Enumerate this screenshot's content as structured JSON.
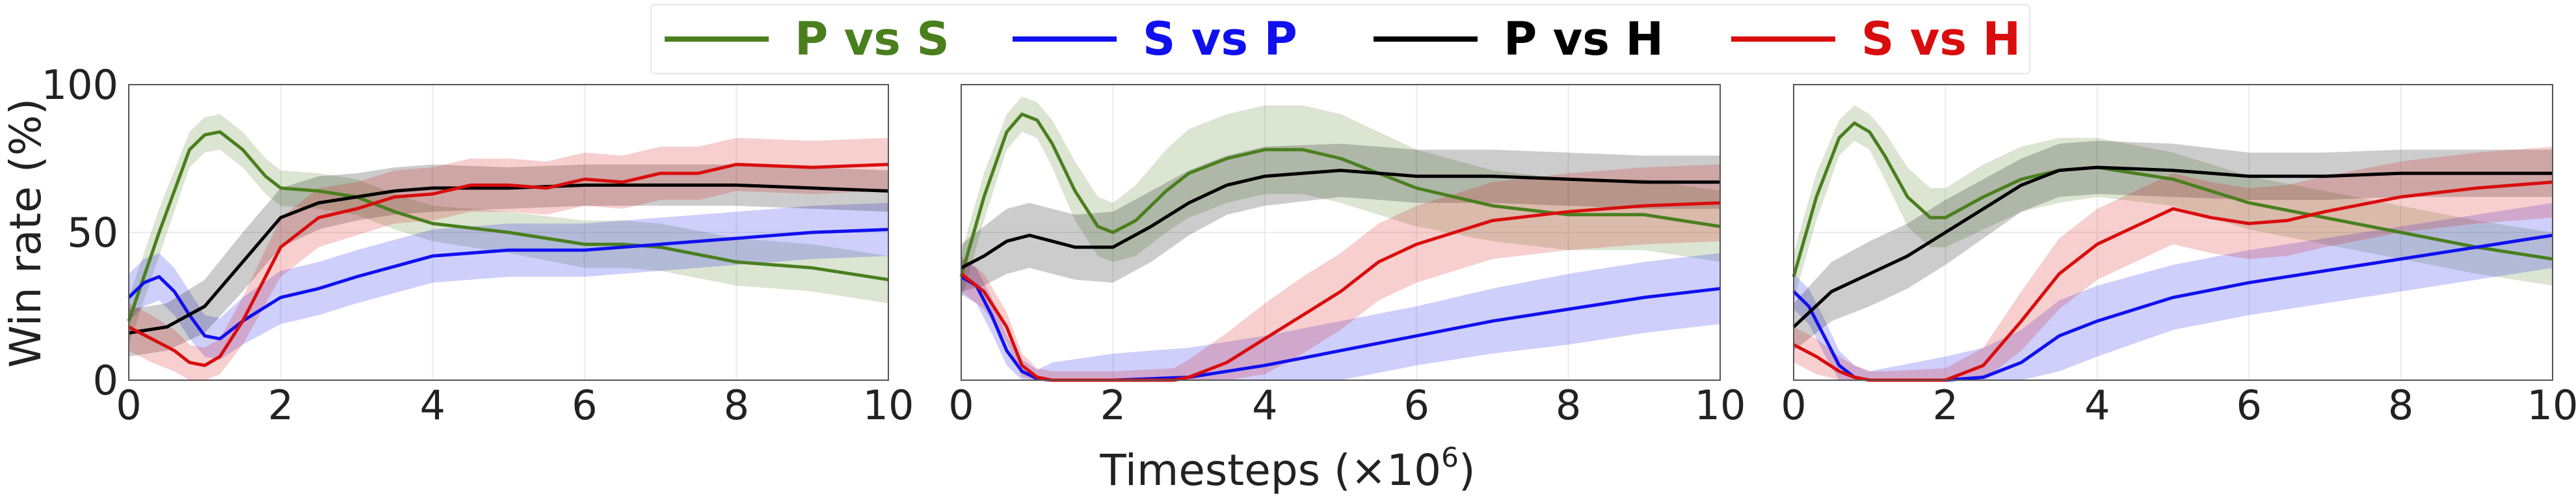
{
  "legend": [
    {
      "label": "P vs S",
      "color": "#4a7f1e"
    },
    {
      "label": "S vs P",
      "color": "#1010ee"
    },
    {
      "label": "P vs H",
      "color": "#000000"
    },
    {
      "label": "S vs H",
      "color": "#d90d0d"
    }
  ],
  "ylabel": "Win rate (%)",
  "xlabel_main": "Timesteps (×10",
  "xlabel_exp": "6",
  "xlabel_close": ")",
  "chart_data": [
    {
      "type": "line",
      "xlim": [
        0,
        10
      ],
      "ylim": [
        0,
        100
      ],
      "xticks": [
        "0",
        "2",
        "4",
        "6",
        "8",
        "10"
      ],
      "yticks": [
        "0",
        "50",
        "100"
      ],
      "grid": true,
      "series": [
        {
          "name": "P vs S",
          "color": "#4a7f1e",
          "x": [
            0,
            0.4,
            0.8,
            1.0,
            1.2,
            1.5,
            1.8,
            2.0,
            2.5,
            3.0,
            3.5,
            4.0,
            5.0,
            6.0,
            6.5,
            7.0,
            8.0,
            9.0,
            10.0
          ],
          "y": [
            20,
            50,
            78,
            83,
            84,
            78,
            69,
            65,
            64,
            62,
            57,
            53,
            50,
            46,
            46,
            45,
            40,
            38,
            34
          ],
          "band": [
            8,
            8,
            6,
            6,
            6,
            6,
            6,
            6,
            6,
            6,
            6,
            6,
            7,
            8,
            8,
            8,
            8,
            8,
            8
          ]
        },
        {
          "name": "S vs P",
          "color": "#1010ee",
          "x": [
            0,
            0.2,
            0.4,
            0.6,
            0.8,
            1.0,
            1.2,
            1.5,
            2.0,
            2.5,
            3.0,
            4.0,
            5.0,
            6.0,
            7.0,
            8.0,
            9.0,
            10.0
          ],
          "y": [
            28,
            33,
            35,
            30,
            22,
            15,
            14,
            20,
            28,
            31,
            35,
            42,
            44,
            44,
            46,
            48,
            50,
            51
          ],
          "band": [
            8,
            8,
            8,
            8,
            8,
            7,
            7,
            8,
            9,
            9,
            9,
            9,
            9,
            9,
            9,
            9,
            9,
            9
          ]
        },
        {
          "name": "P vs H",
          "color": "#000000",
          "x": [
            0,
            0.5,
            1.0,
            1.5,
            2.0,
            2.5,
            3.0,
            3.5,
            4.0,
            5.0,
            6.0,
            7.0,
            8.0,
            9.0,
            10.0
          ],
          "y": [
            16,
            18,
            25,
            40,
            55,
            60,
            62,
            64,
            65,
            65,
            66,
            66,
            66,
            65,
            64
          ],
          "band": [
            8,
            8,
            9,
            10,
            10,
            9,
            8,
            8,
            8,
            7,
            7,
            7,
            7,
            7,
            7
          ]
        },
        {
          "name": "S vs H",
          "color": "#d90d0d",
          "x": [
            0,
            0.3,
            0.6,
            0.8,
            1.0,
            1.2,
            1.5,
            2.0,
            2.5,
            3.0,
            3.5,
            4.0,
            4.5,
            5.0,
            5.5,
            6.0,
            6.5,
            7.0,
            7.5,
            8.0,
            9.0,
            10.0
          ],
          "y": [
            18,
            14,
            10,
            6,
            5,
            8,
            20,
            45,
            55,
            58,
            62,
            63,
            66,
            66,
            65,
            68,
            67,
            70,
            70,
            73,
            72,
            73
          ],
          "band": [
            8,
            8,
            7,
            6,
            6,
            6,
            8,
            10,
            10,
            9,
            9,
            9,
            9,
            9,
            9,
            9,
            9,
            9,
            9,
            9,
            9,
            9
          ]
        }
      ]
    },
    {
      "type": "line",
      "xlim": [
        0,
        10
      ],
      "ylim": [
        0,
        100
      ],
      "xticks": [
        "0",
        "2",
        "4",
        "6",
        "8",
        "10"
      ],
      "yticks": [],
      "grid": true,
      "series": [
        {
          "name": "P vs S",
          "color": "#4a7f1e",
          "x": [
            0,
            0.3,
            0.6,
            0.8,
            1.0,
            1.2,
            1.5,
            1.8,
            2.0,
            2.3,
            2.7,
            3.0,
            3.5,
            4.0,
            4.5,
            5.0,
            5.5,
            6.0,
            7.0,
            8.0,
            9.0,
            10.0
          ],
          "y": [
            35,
            62,
            84,
            90,
            88,
            80,
            64,
            52,
            50,
            54,
            64,
            70,
            75,
            78,
            78,
            75,
            70,
            65,
            59,
            56,
            56,
            52
          ],
          "band": [
            8,
            8,
            6,
            6,
            6,
            8,
            10,
            10,
            10,
            12,
            14,
            15,
            15,
            15,
            15,
            15,
            14,
            13,
            12,
            12,
            12,
            12
          ]
        },
        {
          "name": "S vs P",
          "color": "#1010ee",
          "x": [
            0,
            0.2,
            0.4,
            0.6,
            0.8,
            1.0,
            1.2,
            2.0,
            3.0,
            4.0,
            5.0,
            6.0,
            7.0,
            8.0,
            9.0,
            10.0
          ],
          "y": [
            35,
            32,
            22,
            10,
            3,
            0.5,
            0,
            0,
            1,
            5,
            10,
            15,
            20,
            24,
            28,
            31
          ],
          "band": [
            6,
            6,
            6,
            5,
            4,
            3,
            6,
            9,
            10,
            10,
            10,
            10,
            11,
            12,
            12,
            12
          ]
        },
        {
          "name": "P vs H",
          "color": "#000000",
          "x": [
            0,
            0.3,
            0.6,
            0.9,
            1.2,
            1.5,
            2.0,
            2.5,
            3.0,
            3.5,
            4.0,
            5.0,
            6.0,
            7.0,
            8.0,
            9.0,
            10.0
          ],
          "y": [
            38,
            42,
            47,
            49,
            47,
            45,
            45,
            52,
            60,
            66,
            69,
            71,
            69,
            69,
            68,
            67,
            67
          ],
          "band": [
            8,
            10,
            11,
            11,
            11,
            11,
            12,
            12,
            11,
            10,
            10,
            9,
            9,
            9,
            9,
            9,
            9
          ]
        },
        {
          "name": "S vs H",
          "color": "#d90d0d",
          "x": [
            0,
            0.3,
            0.6,
            0.8,
            1.0,
            1.2,
            2.0,
            2.8,
            3.0,
            3.5,
            4.0,
            4.5,
            5.0,
            5.5,
            6.0,
            6.5,
            7.0,
            8.0,
            9.0,
            10.0
          ],
          "y": [
            36,
            30,
            18,
            5,
            1,
            0,
            0,
            0,
            1,
            6,
            14,
            22,
            30,
            40,
            46,
            50,
            54,
            57,
            59,
            60
          ],
          "band": [
            6,
            6,
            5,
            4,
            3,
            3,
            3,
            4,
            6,
            10,
            12,
            13,
            13,
            13,
            13,
            13,
            13,
            13,
            13,
            13
          ]
        }
      ]
    },
    {
      "type": "line",
      "xlim": [
        0,
        10
      ],
      "ylim": [
        0,
        100
      ],
      "xticks": [
        "0",
        "2",
        "4",
        "6",
        "8",
        "10"
      ],
      "yticks": [],
      "grid": true,
      "series": [
        {
          "name": "P vs S",
          "color": "#4a7f1e",
          "x": [
            0,
            0.3,
            0.6,
            0.8,
            1.0,
            1.2,
            1.5,
            1.8,
            2.0,
            2.5,
            3.0,
            3.5,
            4.0,
            5.0,
            6.0,
            7.0,
            8.0,
            9.0,
            10.0
          ],
          "y": [
            35,
            62,
            82,
            87,
            84,
            76,
            62,
            55,
            55,
            62,
            68,
            71,
            72,
            68,
            60,
            55,
            50,
            45,
            41
          ],
          "band": [
            8,
            8,
            6,
            6,
            6,
            8,
            10,
            10,
            10,
            11,
            11,
            11,
            10,
            9,
            9,
            9,
            9,
            9,
            9
          ]
        },
        {
          "name": "S vs P",
          "color": "#1010ee",
          "x": [
            0,
            0.2,
            0.4,
            0.6,
            0.8,
            1.0,
            1.2,
            2.0,
            2.5,
            3.0,
            3.5,
            4.0,
            5.0,
            6.0,
            7.0,
            8.0,
            9.0,
            10.0
          ],
          "y": [
            30,
            25,
            15,
            5,
            1,
            0,
            0,
            0,
            1,
            6,
            15,
            20,
            28,
            33,
            37,
            41,
            45,
            49
          ],
          "band": [
            6,
            6,
            6,
            5,
            4,
            3,
            4,
            8,
            10,
            11,
            12,
            12,
            11,
            11,
            11,
            11,
            11,
            11
          ]
        },
        {
          "name": "P vs H",
          "color": "#000000",
          "x": [
            0,
            0.5,
            1.0,
            1.5,
            2.0,
            2.5,
            3.0,
            3.5,
            4.0,
            5.0,
            6.0,
            7.0,
            8.0,
            9.0,
            10.0
          ],
          "y": [
            18,
            30,
            36,
            42,
            50,
            58,
            66,
            71,
            72,
            71,
            69,
            69,
            70,
            70,
            70
          ],
          "band": [
            8,
            10,
            11,
            11,
            11,
            10,
            9,
            9,
            9,
            9,
            8,
            8,
            8,
            8,
            8
          ]
        },
        {
          "name": "S vs H",
          "color": "#d90d0d",
          "x": [
            0,
            0.3,
            0.6,
            0.8,
            1.0,
            1.2,
            2.0,
            2.5,
            3.0,
            3.5,
            4.0,
            4.5,
            5.0,
            5.5,
            6.0,
            6.5,
            7.0,
            8.0,
            9.0,
            10.0
          ],
          "y": [
            12,
            8,
            3,
            1,
            0,
            0,
            0,
            5,
            20,
            36,
            46,
            52,
            58,
            55,
            53,
            54,
            57,
            62,
            65,
            67
          ],
          "band": [
            6,
            6,
            5,
            4,
            3,
            3,
            4,
            6,
            10,
            12,
            12,
            12,
            12,
            12,
            12,
            12,
            12,
            12,
            12,
            12
          ]
        }
      ]
    }
  ]
}
